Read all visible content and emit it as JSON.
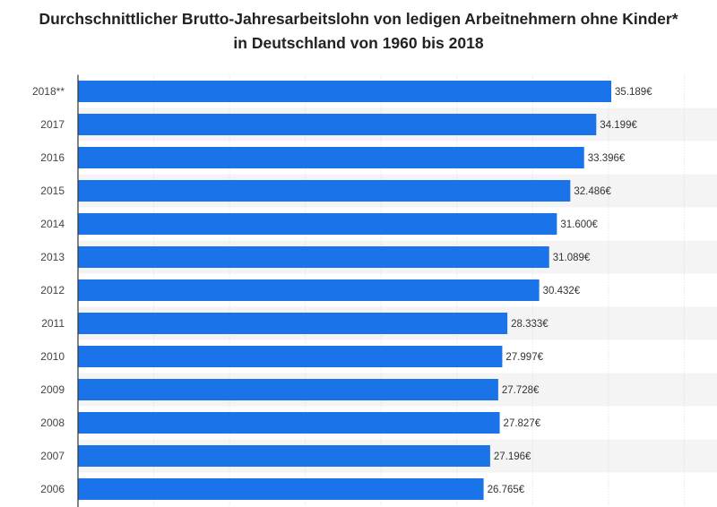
{
  "chart_data": {
    "type": "bar",
    "orientation": "horizontal",
    "title": "Durchschnittlicher Brutto-Jahresarbeitslohn von ledigen Arbeitnehmern ohne Kinder* in Deutschland von 1960 bis 2018",
    "categories": [
      "2018**",
      "2017",
      "2016",
      "2015",
      "2014",
      "2013",
      "2012",
      "2011",
      "2010",
      "2009",
      "2008",
      "2007",
      "2006"
    ],
    "values": [
      35189,
      34199,
      33396,
      32486,
      31600,
      31089,
      30432,
      28333,
      27997,
      27728,
      27827,
      27196,
      26765
    ],
    "value_labels": [
      "35.189€",
      "34.199€",
      "33.396€",
      "32.486€",
      "31.600€",
      "31.089€",
      "30.432€",
      "28.333€",
      "27.997€",
      "27.728€",
      "27.827€",
      "27.196€",
      "26.765€"
    ],
    "xlim": [
      0,
      40000
    ],
    "grid": true,
    "colors": {
      "bar": "#1a73e8",
      "band": "#f4f4f4",
      "grid": "#d9d9d9",
      "axis": "#333333"
    }
  }
}
